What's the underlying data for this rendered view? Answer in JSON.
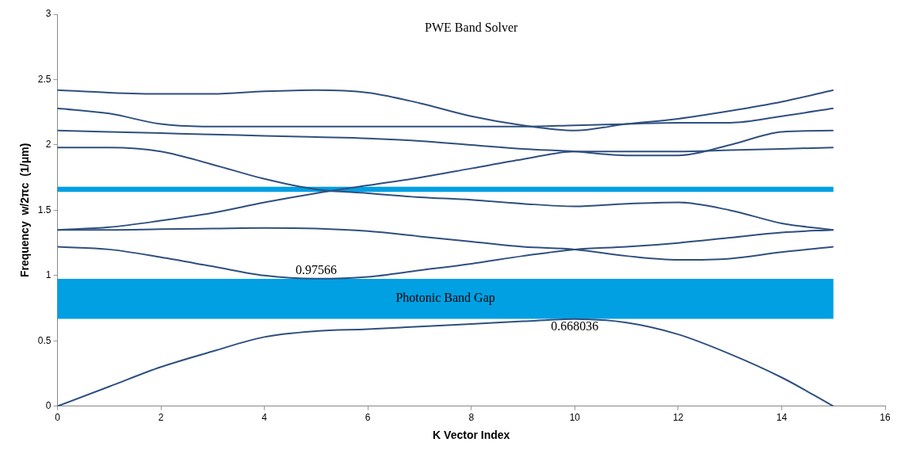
{
  "chart_data": {
    "type": "line",
    "title": "PWE Band Solver",
    "xlabel": "K Vector Index",
    "ylabel": "Frequency  w/2πc  (1/μm)",
    "x": [
      0,
      1,
      2,
      3,
      4,
      5,
      6,
      7,
      8,
      9,
      10,
      11,
      12,
      13,
      14,
      15
    ],
    "series": [
      {
        "color": "#2f4f7f",
        "values": [
          0,
          0.15,
          0.3,
          0.42,
          0.53,
          0.575,
          0.59,
          0.61,
          0.63,
          0.65,
          0.668,
          0.64,
          0.55,
          0.4,
          0.22,
          0
        ]
      },
      {
        "color": "#2f4f7f",
        "values": [
          1.22,
          1.2,
          1.14,
          1.07,
          1.0,
          0.976,
          0.99,
          1.04,
          1.09,
          1.15,
          1.2,
          1.22,
          1.25,
          1.29,
          1.33,
          1.35
        ]
      },
      {
        "color": "#2f4f7f",
        "values": [
          1.35,
          1.35,
          1.355,
          1.36,
          1.365,
          1.36,
          1.34,
          1.3,
          1.26,
          1.22,
          1.2,
          1.15,
          1.12,
          1.13,
          1.18,
          1.22
        ]
      },
      {
        "color": "#2f4f7f",
        "values": [
          1.35,
          1.37,
          1.42,
          1.48,
          1.56,
          1.63,
          1.69,
          1.75,
          1.82,
          1.89,
          1.95,
          1.95,
          1.95,
          1.96,
          1.97,
          1.98
        ]
      },
      {
        "color": "#2f4f7f",
        "values": [
          1.98,
          1.98,
          1.95,
          1.85,
          1.74,
          1.66,
          1.63,
          1.6,
          1.58,
          1.55,
          1.53,
          1.55,
          1.56,
          1.5,
          1.4,
          1.35
        ]
      },
      {
        "color": "#2f4f7f",
        "values": [
          2.11,
          2.1,
          2.09,
          2.08,
          2.07,
          2.06,
          2.05,
          2.03,
          2.0,
          1.97,
          1.95,
          1.92,
          1.92,
          2.0,
          2.1,
          2.11
        ]
      },
      {
        "color": "#2f4f7f",
        "values": [
          2.28,
          2.24,
          2.16,
          2.14,
          2.14,
          2.14,
          2.14,
          2.14,
          2.14,
          2.14,
          2.15,
          2.16,
          2.17,
          2.17,
          2.22,
          2.28
        ]
      },
      {
        "color": "#2f4f7f",
        "values": [
          2.42,
          2.4,
          2.39,
          2.39,
          2.41,
          2.42,
          2.4,
          2.32,
          2.22,
          2.15,
          2.11,
          2.16,
          2.2,
          2.26,
          2.33,
          2.42
        ]
      }
    ],
    "bands": [
      {
        "axis": "y",
        "from": 0.668036,
        "to": 0.97566,
        "label": "Photonic Band Gap",
        "color": "#00a0e3"
      },
      {
        "axis": "y",
        "from": 1.64,
        "to": 1.68,
        "color": "#00a0e3"
      }
    ],
    "annotations": [
      {
        "text": "0.97566",
        "x": 5,
        "y": 0.97566
      },
      {
        "text": "0.668036",
        "x": 10,
        "y": 0.668036
      }
    ],
    "xlim": [
      0,
      16
    ],
    "xticks": [
      0,
      2,
      4,
      6,
      8,
      10,
      12,
      14,
      16
    ],
    "ylim": [
      0,
      3
    ],
    "yticks": [
      0,
      0.5,
      1,
      1.5,
      2,
      2.5,
      3
    ],
    "grid": false,
    "legend": false,
    "marker": "none",
    "line_style": "solid"
  }
}
